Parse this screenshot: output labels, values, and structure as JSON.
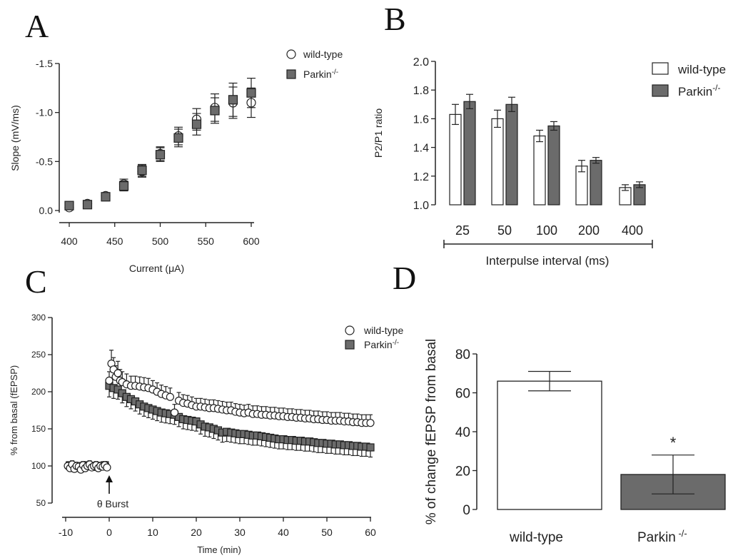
{
  "colors": {
    "wt_fill": "#ffffff",
    "ko_fill": "#6b6b6b",
    "stroke": "#222222"
  },
  "chart_data": [
    {
      "panel": "A",
      "type": "scatter",
      "xlabel": "Current (μA)",
      "ylabel": "Slope (mV/ms)",
      "xlim": [
        400,
        600
      ],
      "ylim": [
        0.0,
        -1.5
      ],
      "y_inverted": true,
      "xticks": [
        "400",
        "450",
        "500",
        "550",
        "600"
      ],
      "yticks": [
        "0.0",
        "-0.5",
        "-1.0",
        "-1.5"
      ],
      "legend_position": "top-right",
      "series": [
        {
          "name": "wild-type",
          "marker": "circle",
          "x": [
            400,
            420,
            440,
            460,
            480,
            500,
            520,
            540,
            560,
            580,
            600
          ],
          "y": [
            -0.03,
            -0.07,
            -0.15,
            -0.27,
            -0.4,
            -0.58,
            -0.76,
            -0.93,
            -1.05,
            -1.1,
            -1.1
          ],
          "err": [
            0.02,
            0.02,
            0.03,
            0.05,
            0.06,
            0.07,
            0.09,
            0.11,
            0.14,
            0.16,
            0.15
          ]
        },
        {
          "name": "Parkin",
          "name_superscript": "-/-",
          "marker": "square",
          "x": [
            400,
            420,
            440,
            460,
            480,
            500,
            520,
            540,
            560,
            580,
            600
          ],
          "y": [
            -0.05,
            -0.06,
            -0.14,
            -0.25,
            -0.41,
            -0.57,
            -0.74,
            -0.88,
            -1.02,
            -1.13,
            -1.2
          ],
          "err": [
            0.02,
            0.02,
            0.03,
            0.05,
            0.06,
            0.07,
            0.09,
            0.11,
            0.13,
            0.17,
            0.15
          ]
        }
      ]
    },
    {
      "panel": "B",
      "type": "bar",
      "xlabel": "Interpulse interval (ms)",
      "ylabel": "P2/P1 ratio",
      "ylim": [
        1.0,
        2.0
      ],
      "yticks": [
        "1.0",
        "1.2",
        "1.4",
        "1.6",
        "1.8",
        "2.0"
      ],
      "categories": [
        "25",
        "50",
        "100",
        "200",
        "400"
      ],
      "legend_position": "top-right",
      "series": [
        {
          "name": "wild-type",
          "values": [
            1.63,
            1.6,
            1.48,
            1.27,
            1.12
          ],
          "err": [
            0.07,
            0.06,
            0.04,
            0.04,
            0.02
          ]
        },
        {
          "name": "Parkin",
          "name_superscript": "-/-",
          "values": [
            1.72,
            1.7,
            1.55,
            1.31,
            1.14
          ],
          "err": [
            0.05,
            0.05,
            0.03,
            0.02,
            0.02
          ]
        }
      ]
    },
    {
      "panel": "C",
      "type": "scatter",
      "xlabel": "Time (min)",
      "ylabel": "% from basal (fEPSP)",
      "xlim": [
        -10,
        60
      ],
      "ylim": [
        50,
        300
      ],
      "xticks": [
        "-10",
        "0",
        "10",
        "20",
        "30",
        "40",
        "50",
        "60"
      ],
      "yticks": [
        "50",
        "100",
        "150",
        "200",
        "250",
        "300"
      ],
      "annotation": "θ Burst",
      "annotation_x": 0,
      "legend_position": "top-right",
      "series": [
        {
          "name": "wild-type",
          "marker": "circle",
          "x": [
            -9.5,
            -9,
            -8.5,
            -8,
            -7.5,
            -7,
            -6.5,
            -6,
            -5.5,
            -5,
            -4.5,
            -4,
            -3.5,
            -3,
            -2.5,
            -2,
            -1.5,
            -1,
            -0.5,
            0,
            0.5,
            1,
            1.5,
            2,
            2.5,
            3,
            4,
            5,
            6,
            7,
            8,
            9,
            10,
            11,
            12,
            13,
            14,
            15,
            16,
            17,
            18,
            19,
            20,
            21,
            22,
            23,
            24,
            25,
            26,
            27,
            28,
            29,
            30,
            31,
            32,
            33,
            34,
            35,
            36,
            37,
            38,
            39,
            40,
            41,
            42,
            43,
            44,
            45,
            46,
            47,
            48,
            49,
            50,
            51,
            52,
            53,
            54,
            55,
            56,
            57,
            58,
            59,
            60
          ],
          "y": [
            100,
            97,
            102,
            96,
            100,
            99,
            95,
            101,
            97,
            100,
            102,
            98,
            100,
            101,
            97,
            100,
            99,
            101,
            98,
            215,
            238,
            230,
            220,
            225,
            215,
            213,
            210,
            208,
            208,
            207,
            206,
            205,
            203,
            200,
            197,
            195,
            193,
            172,
            188,
            185,
            184,
            182,
            180,
            180,
            179,
            178,
            178,
            177,
            176,
            175,
            175,
            173,
            172,
            171,
            172,
            170,
            170,
            169,
            169,
            168,
            168,
            167,
            167,
            166,
            166,
            165,
            165,
            164,
            164,
            163,
            163,
            162,
            162,
            161,
            161,
            161,
            160,
            160,
            159,
            159,
            158,
            158,
            158
          ],
          "err": [
            5,
            5,
            5,
            5,
            5,
            5,
            5,
            5,
            5,
            5,
            5,
            5,
            5,
            5,
            5,
            5,
            5,
            5,
            5,
            12,
            18,
            16,
            15,
            16,
            15,
            14,
            14,
            13,
            13,
            13,
            13,
            13,
            12,
            12,
            12,
            12,
            12,
            11,
            11,
            11,
            11,
            11,
            11,
            11,
            11,
            11,
            11,
            11,
            11,
            11,
            11,
            11,
            11,
            11,
            11,
            11,
            11,
            11,
            11,
            11,
            11,
            11,
            11,
            11,
            11,
            11,
            11,
            11,
            11,
            11,
            11,
            11,
            11,
            11,
            11,
            11,
            11,
            11,
            11,
            11,
            11,
            11,
            11
          ]
        },
        {
          "name": "Parkin",
          "name_superscript": "-/-",
          "marker": "square",
          "x": [
            -9,
            -8,
            -7,
            -6,
            -5,
            -4,
            -3,
            -2,
            -1,
            0,
            1,
            2,
            3,
            4,
            5,
            6,
            7,
            8,
            9,
            10,
            11,
            12,
            13,
            14,
            15,
            16,
            17,
            18,
            19,
            20,
            21,
            22,
            23,
            24,
            25,
            26,
            27,
            28,
            29,
            30,
            31,
            32,
            33,
            34,
            35,
            36,
            37,
            38,
            39,
            40,
            41,
            42,
            43,
            44,
            45,
            46,
            47,
            48,
            49,
            50,
            51,
            52,
            53,
            54,
            55,
            56,
            57,
            58,
            59,
            60
          ],
          "y": [
            101,
            100,
            99,
            100,
            101,
            100,
            99,
            100,
            101,
            208,
            205,
            203,
            198,
            193,
            190,
            187,
            183,
            180,
            178,
            176,
            174,
            172,
            171,
            170,
            169,
            166,
            163,
            162,
            161,
            160,
            156,
            153,
            152,
            150,
            148,
            145,
            146,
            145,
            144,
            143,
            143,
            142,
            141,
            141,
            140,
            139,
            138,
            137,
            136,
            136,
            135,
            135,
            134,
            134,
            133,
            133,
            132,
            131,
            131,
            130,
            130,
            129,
            129,
            128,
            128,
            127,
            127,
            126,
            126,
            125
          ],
          "err": [
            5,
            5,
            5,
            5,
            5,
            5,
            5,
            5,
            5,
            15,
            14,
            13,
            13,
            13,
            13,
            13,
            13,
            13,
            13,
            13,
            13,
            13,
            13,
            13,
            13,
            13,
            13,
            13,
            13,
            13,
            13,
            13,
            13,
            13,
            13,
            13,
            13,
            13,
            13,
            13,
            13,
            13,
            13,
            13,
            13,
            13,
            13,
            13,
            13,
            13,
            13,
            13,
            13,
            13,
            13,
            13,
            13,
            13,
            13,
            13,
            13,
            13,
            13,
            13,
            13,
            13,
            13,
            13,
            13,
            13
          ]
        }
      ]
    },
    {
      "panel": "D",
      "type": "bar",
      "ylabel": "% of change fEPSP from basal",
      "ylim": [
        0,
        80
      ],
      "yticks": [
        "0",
        "20",
        "40",
        "60",
        "80"
      ],
      "categories": [
        "wild-type",
        "Parkin"
      ],
      "category_superscripts": [
        "",
        " -/-"
      ],
      "values": [
        66,
        18
      ],
      "err": [
        5,
        10
      ],
      "annotation": "*"
    }
  ],
  "panels": {
    "a": "A",
    "b": "B",
    "c": "C",
    "d": "D"
  }
}
